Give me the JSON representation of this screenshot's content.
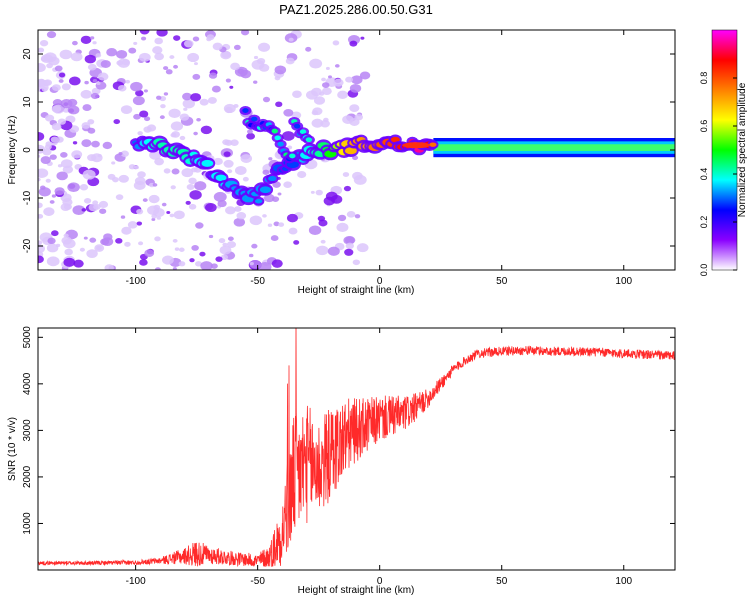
{
  "title": "PAZ1.2025.286.00.50.G31",
  "chart_data": [
    {
      "type": "heatmap",
      "title": "PAZ1.2025.286.00.50.G31",
      "xlabel": "Height of straight line (km)",
      "ylabel": "Frequency (Hz)",
      "xlim": [
        -140,
        121
      ],
      "ylim": [
        -25,
        25
      ],
      "xticks": [
        -100,
        -50,
        0,
        50,
        100
      ],
      "yticks": [
        -20,
        -10,
        0,
        10,
        20
      ],
      "colorbar": {
        "label": "Normalized spectral amplitude",
        "range": [
          0,
          1
        ],
        "ticks": [
          0.0,
          0.2,
          0.4,
          0.6,
          0.8
        ],
        "colormap": [
          "#ffffff",
          "#8a00ff",
          "#0000ff",
          "#00ffff",
          "#00ff00",
          "#ffff00",
          "#ff8000",
          "#ff0000",
          "#ff00ff"
        ]
      },
      "ridge": {
        "x": [
          -105,
          -95,
          -90,
          -85,
          -80,
          -75,
          -70,
          -65,
          -60,
          -55,
          -50,
          -45,
          -40,
          -35,
          -30,
          -25,
          -20,
          -15,
          -10,
          -5,
          0,
          5,
          10,
          15,
          20,
          25,
          50,
          75,
          100,
          121
        ],
        "y": [
          1,
          2,
          1,
          0,
          -1,
          -2,
          -4,
          -6,
          -8,
          -9,
          -10,
          -6,
          -4,
          -2,
          -1,
          0,
          0,
          0.5,
          1,
          1.5,
          1,
          1.5,
          1,
          1,
          0.5,
          0.5,
          0.5,
          0.5,
          0.5,
          0.5
        ],
        "amplitude": [
          0.15,
          0.3,
          0.35,
          0.35,
          0.35,
          0.3,
          0.3,
          0.3,
          0.25,
          0.25,
          0.25,
          0.25,
          0.2,
          0.2,
          0.3,
          0.35,
          0.45,
          0.6,
          0.7,
          0.7,
          0.75,
          0.8,
          0.85,
          0.95,
          0.9,
          0.45,
          0.45,
          0.45,
          0.45,
          0.45
        ]
      },
      "secondary_branches": [
        {
          "x": [
            -55,
            -45,
            -40,
            -35
          ],
          "y": [
            7,
            4,
            1,
            -2
          ],
          "amplitude": 0.25
        },
        {
          "x": [
            -35,
            -30,
            -28
          ],
          "y": [
            5,
            2,
            0
          ],
          "amplitude": 0.25
        }
      ]
    },
    {
      "type": "line",
      "xlabel": "Height of straight line (km)",
      "ylabel": "SNR (10 * v/v)",
      "xlim": [
        -140,
        121
      ],
      "ylim": [
        0,
        5200
      ],
      "xticks": [
        -100,
        -50,
        0,
        50,
        100
      ],
      "yticks": [
        1000,
        2000,
        3000,
        4000,
        5000
      ],
      "color": "#ff2a2a",
      "series": [
        {
          "name": "SNR",
          "x": [
            -140,
            -120,
            -100,
            -90,
            -80,
            -75,
            -70,
            -60,
            -50,
            -45,
            -40,
            -37,
            -35,
            -30,
            -25,
            -20,
            -15,
            -10,
            -5,
            0,
            5,
            10,
            15,
            20,
            25,
            30,
            35,
            40,
            50,
            60,
            70,
            80,
            90,
            100,
            110,
            121
          ],
          "values": [
            150,
            150,
            160,
            200,
            300,
            350,
            320,
            250,
            200,
            280,
            800,
            1500,
            2000,
            2300,
            2200,
            2500,
            2800,
            3000,
            3100,
            3250,
            3300,
            3350,
            3500,
            3700,
            4000,
            4300,
            4500,
            4650,
            4700,
            4720,
            4700,
            4700,
            4680,
            4650,
            4630,
            4600
          ]
        }
      ],
      "noise_amplitude": [
        40,
        40,
        50,
        70,
        180,
        300,
        200,
        150,
        150,
        300,
        700,
        1200,
        1400,
        1300,
        1100,
        1000,
        900,
        700,
        600,
        500,
        450,
        400,
        300,
        200,
        150,
        120,
        100,
        100,
        100,
        100,
        100,
        100,
        100,
        100,
        100,
        100
      ]
    }
  ]
}
